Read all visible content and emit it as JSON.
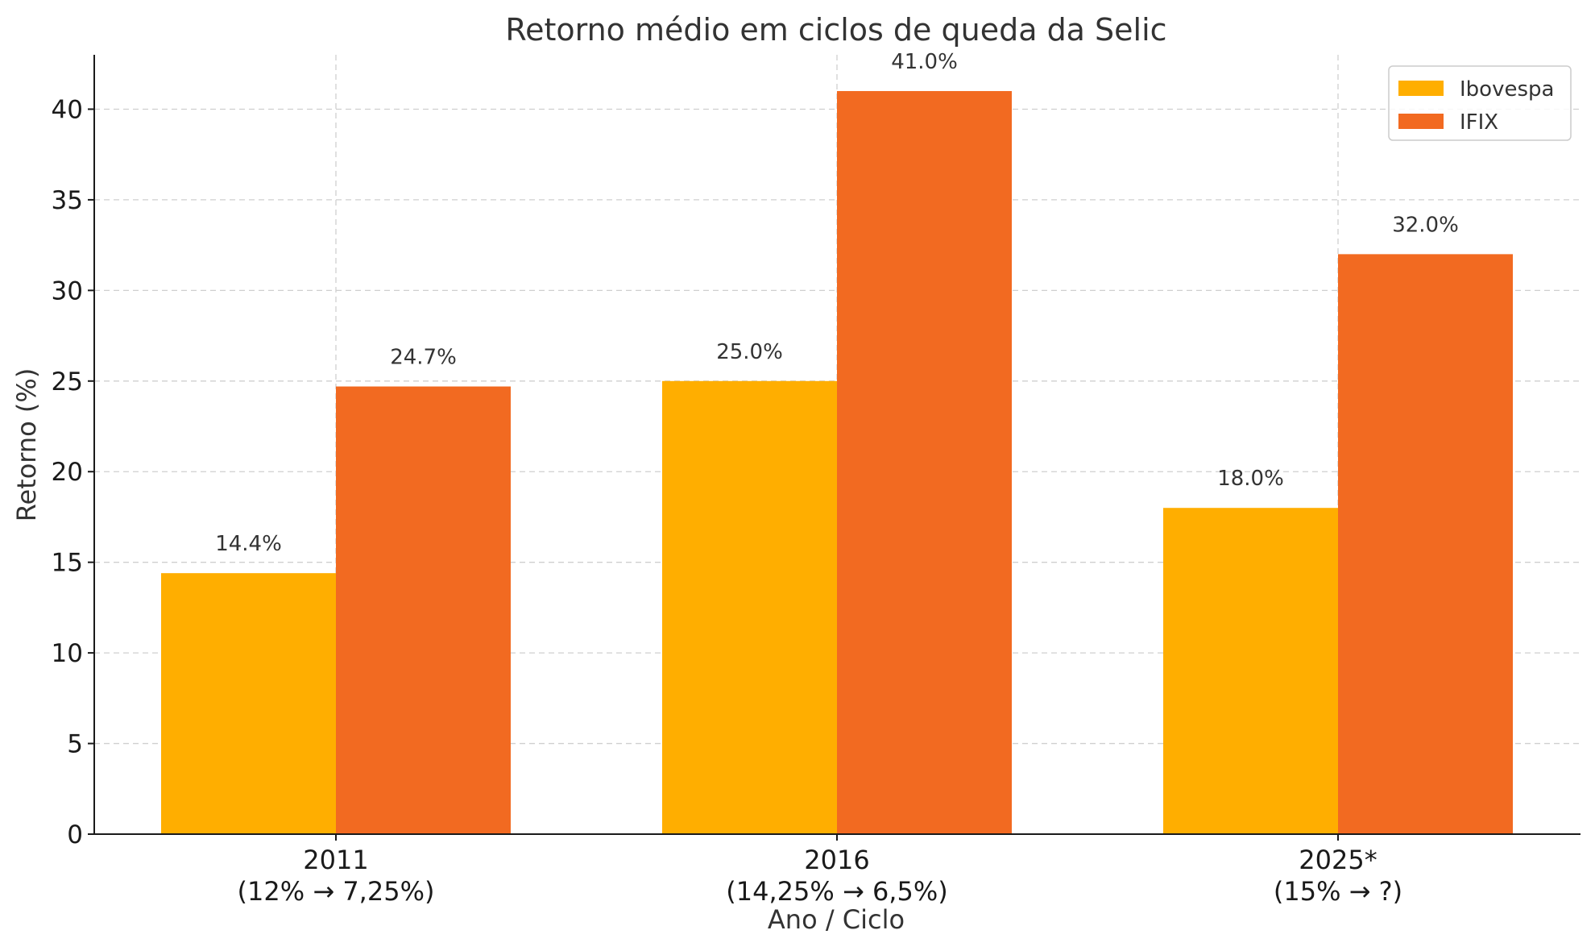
{
  "chart_data": {
    "type": "bar",
    "title": "Retorno médio em ciclos de queda da Selic",
    "xlabel": "Ano / Ciclo",
    "ylabel": "Retorno (%)",
    "categories": [
      {
        "line1": "2011",
        "line2": "(12% → 7,25%)"
      },
      {
        "line1": "2016",
        "line2": "(14,25% → 6,5%)"
      },
      {
        "line1": "2025*",
        "line2": "(15% → ?)"
      }
    ],
    "series": [
      {
        "name": "Ibovespa",
        "color": "#FFAE00",
        "values": [
          14.4,
          25.0,
          18.0
        ],
        "labels": [
          "14.4%",
          "25.0%",
          "18.0%"
        ]
      },
      {
        "name": "IFIX",
        "color": "#F26A21",
        "values": [
          24.7,
          41.0,
          32.0
        ],
        "labels": [
          "24.7%",
          "41.0%",
          "32.0%"
        ]
      }
    ],
    "ylim": [
      0,
      43
    ],
    "yticks": [
      0,
      5,
      10,
      15,
      20,
      25,
      30,
      35,
      40
    ],
    "grid": true,
    "legend": "top-right"
  }
}
